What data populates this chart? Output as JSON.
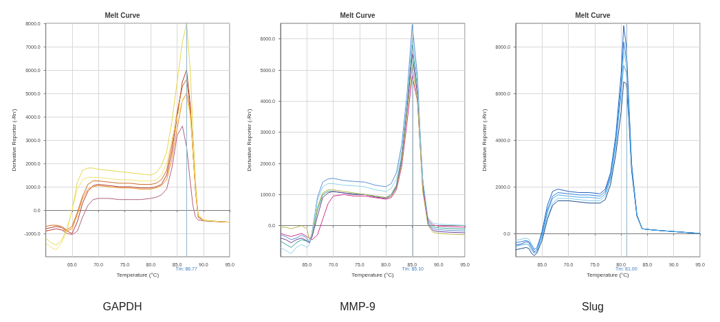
{
  "chart_data": [
    {
      "type": "line",
      "title": "Melt Curve",
      "xlabel": "Temperature (°C)",
      "ylabel": "Derivative Reporter (-Rn')",
      "annotations": [
        "GAPDH"
      ],
      "grid": true,
      "line_style": "solid",
      "xlim": [
        60,
        95
      ],
      "xticks": [
        {
          "value": 65,
          "label": "65.0"
        },
        {
          "value": 70,
          "label": "70.0"
        },
        {
          "value": 75,
          "label": "75.0"
        },
        {
          "value": 80,
          "label": "80.0"
        },
        {
          "value": 85,
          "label": "85.0"
        },
        {
          "value": 90,
          "label": "90.0"
        },
        {
          "value": 95,
          "label": "95.0"
        }
      ],
      "ylim": [
        -2000,
        8000
      ],
      "yticks": [
        {
          "value": -1000,
          "label": "-1000.0"
        },
        {
          "value": 0,
          "label": "0.0"
        },
        {
          "value": 1000,
          "label": "1000.0"
        },
        {
          "value": 2000,
          "label": "2000.0"
        },
        {
          "value": 3000,
          "label": "3000.0"
        },
        {
          "value": 4000,
          "label": "4000.0"
        },
        {
          "value": 5000,
          "label": "5000.0"
        },
        {
          "value": 6000,
          "label": "6000.0"
        },
        {
          "value": 7000,
          "label": "7000.0"
        },
        {
          "value": 8000,
          "label": "8000.0"
        }
      ],
      "ref_lines": [
        {
          "axis": "x",
          "value": 86.77,
          "label": "Tm: 86.77",
          "color": "#8fb3c8"
        }
      ],
      "x": [
        60,
        61,
        62,
        63,
        64,
        65,
        66,
        67,
        68,
        69,
        70,
        72,
        74,
        76,
        78,
        80,
        81,
        82,
        83,
        84,
        85,
        86,
        86.8,
        87.5,
        88,
        88.5,
        89,
        90,
        92,
        95
      ],
      "series": [
        {
          "color": "#b03a2e",
          "values": [
            -800,
            -750,
            -700,
            -750,
            -900,
            -1000,
            -500,
            300,
            800,
            1050,
            1100,
            1050,
            1000,
            1000,
            950,
            950,
            1000,
            1100,
            1500,
            2500,
            4000,
            5500,
            6000,
            4500,
            2500,
            800,
            -300,
            -450,
            -480,
            -520
          ]
        },
        {
          "color": "#e3d84a",
          "values": [
            -1200,
            -1400,
            -1500,
            -1300,
            -800,
            0,
            1200,
            1700,
            1800,
            1800,
            1750,
            1700,
            1650,
            1600,
            1550,
            1500,
            1600,
            1900,
            2500,
            3800,
            5500,
            7200,
            8000,
            6000,
            3500,
            1200,
            -200,
            -420,
            -470,
            -520
          ]
        },
        {
          "color": "#f08a1c",
          "values": [
            -900,
            -850,
            -800,
            -850,
            -900,
            -800,
            -200,
            500,
            900,
            1000,
            1050,
            1000,
            950,
            950,
            900,
            900,
            950,
            1050,
            1300,
            2200,
            3500,
            4700,
            5000,
            4200,
            2600,
            900,
            -250,
            -450,
            -480,
            -520
          ]
        },
        {
          "color": "#b0607a",
          "values": [
            -900,
            -850,
            -800,
            -850,
            -1000,
            -1050,
            -900,
            -300,
            200,
            450,
            500,
            500,
            450,
            450,
            450,
            500,
            550,
            650,
            900,
            1800,
            3200,
            3600,
            2700,
            1200,
            200,
            -300,
            -420,
            -460,
            -490,
            -520
          ]
        },
        {
          "color": "#d2691e",
          "values": [
            -700,
            -650,
            -650,
            -700,
            -850,
            -700,
            -100,
            600,
            1100,
            1250,
            1250,
            1200,
            1150,
            1150,
            1100,
            1100,
            1150,
            1300,
            1700,
            2800,
            4200,
            5300,
            5600,
            4300,
            2600,
            900,
            -250,
            -440,
            -480,
            -520
          ]
        },
        {
          "color": "#f2e36b",
          "values": [
            -1400,
            -1600,
            -1700,
            -1400,
            -900,
            0,
            900,
            1300,
            1400,
            1400,
            1400,
            1350,
            1300,
            1300,
            1250,
            1250,
            1300,
            1500,
            2000,
            3000,
            4000,
            4700,
            4800,
            4000,
            2500,
            900,
            -250,
            -440,
            -480,
            -520
          ]
        }
      ]
    },
    {
      "type": "line",
      "title": "Melt Curve",
      "xlabel": "Temperature (°C)",
      "ylabel": "Derivative Reporter (-Rn')",
      "annotations": [
        "MMP-9"
      ],
      "grid": true,
      "line_style": "solid",
      "xlim": [
        60,
        95
      ],
      "xticks": [
        {
          "value": 65,
          "label": "65.0"
        },
        {
          "value": 70,
          "label": "70.0"
        },
        {
          "value": 75,
          "label": "75.0"
        },
        {
          "value": 80,
          "label": "80.0"
        },
        {
          "value": 85,
          "label": "85.0"
        },
        {
          "value": 90,
          "label": "90.0"
        },
        {
          "value": 95,
          "label": "95.0"
        }
      ],
      "ylim": [
        -1000,
        6500
      ],
      "yticks": [
        {
          "value": 0,
          "label": "0.0"
        },
        {
          "value": 1000,
          "label": "1000.0"
        },
        {
          "value": 2000,
          "label": "2000.0"
        },
        {
          "value": 3000,
          "label": "3000.0"
        },
        {
          "value": 4000,
          "label": "4000.0"
        },
        {
          "value": 5000,
          "label": "5000.0"
        },
        {
          "value": 6000,
          "label": "6000.0"
        }
      ],
      "ref_lines": [
        {
          "axis": "x",
          "value": 85.1,
          "label": "Tm: 85.10",
          "color": "#8fb3c8"
        }
      ],
      "x": [
        60,
        61,
        62,
        63,
        64,
        65,
        65.5,
        66,
        67,
        68,
        69,
        70,
        72,
        74,
        76,
        78,
        80,
        81,
        82,
        83,
        84,
        85,
        86,
        86.5,
        87,
        88,
        89,
        90,
        92,
        95
      ],
      "series": [
        {
          "color": "#5b8fd6",
          "values": [
            -300,
            -350,
            -450,
            -400,
            -300,
            -400,
            -550,
            -200,
            900,
            1400,
            1500,
            1520,
            1450,
            1420,
            1400,
            1300,
            1250,
            1350,
            1700,
            2600,
            4200,
            6450,
            4800,
            3000,
            1500,
            100,
            -100,
            -130,
            -150,
            -170
          ]
        },
        {
          "color": "#2fa58a",
          "values": [
            -500,
            -600,
            -700,
            -550,
            -450,
            -500,
            -550,
            -300,
            500,
            1000,
            1100,
            1100,
            1050,
            1020,
            1000,
            950,
            900,
            1000,
            1300,
            2200,
            3800,
            5800,
            4400,
            2800,
            1400,
            150,
            -40,
            -70,
            -90,
            -110
          ]
        },
        {
          "color": "#6a3d9a",
          "values": [
            -400,
            -450,
            -550,
            -450,
            -400,
            -480,
            -550,
            -350,
            300,
            900,
            1050,
            1100,
            1050,
            1000,
            1000,
            920,
            880,
            950,
            1250,
            2100,
            3700,
            5500,
            4200,
            2700,
            1350,
            50,
            -160,
            -190,
            -210,
            -230
          ]
        },
        {
          "color": "#d0308f",
          "values": [
            -250,
            -300,
            -350,
            -300,
            -250,
            -350,
            -400,
            -450,
            -300,
            200,
            700,
            950,
            1000,
            950,
            950,
            900,
            850,
            900,
            1150,
            1900,
            3300,
            4800,
            4000,
            2600,
            1200,
            200,
            20,
            -10,
            -30,
            -50
          ]
        },
        {
          "color": "#b5b54a",
          "values": [
            -50,
            -50,
            -100,
            -50,
            0,
            -100,
            -450,
            -250,
            600,
            1050,
            1150,
            1150,
            1100,
            1050,
            1000,
            950,
            900,
            950,
            1200,
            2000,
            3600,
            5100,
            4000,
            2600,
            1100,
            0,
            -220,
            -250,
            -270,
            -290
          ]
        },
        {
          "color": "#8fd3e8",
          "values": [
            -700,
            -800,
            -900,
            -700,
            -600,
            -700,
            -600,
            -200,
            800,
            1250,
            1350,
            1350,
            1300,
            1280,
            1250,
            1150,
            1100,
            1200,
            1500,
            2400,
            4000,
            6000,
            4600,
            2900,
            1450,
            250,
            80,
            50,
            30,
            10
          ]
        }
      ]
    },
    {
      "type": "line",
      "title": "Melt Curve",
      "xlabel": "Temperature (°C)",
      "ylabel": "Derivative Reporter (-Rn')",
      "annotations": [
        "Slug"
      ],
      "grid": true,
      "line_style": "solid",
      "xlim": [
        60,
        95
      ],
      "xticks": [
        {
          "value": 65,
          "label": "65.0"
        },
        {
          "value": 70,
          "label": "70.0"
        },
        {
          "value": 75,
          "label": "75.0"
        },
        {
          "value": 80,
          "label": "80.0"
        },
        {
          "value": 85,
          "label": "85.0"
        },
        {
          "value": 90,
          "label": "90.0"
        },
        {
          "value": 95,
          "label": "95.0"
        }
      ],
      "ylim": [
        -1000,
        9000
      ],
      "yticks": [
        {
          "value": 0,
          "label": "0.0"
        },
        {
          "value": 2000,
          "label": "2000.0"
        },
        {
          "value": 4000,
          "label": "4000.0"
        },
        {
          "value": 6000,
          "label": "6000.0"
        },
        {
          "value": 8000,
          "label": "8000.0"
        }
      ],
      "ref_lines": [
        {
          "axis": "x",
          "value": 81,
          "label": "Tm: 81.00",
          "color": "#8fb3c8"
        }
      ],
      "x": [
        60,
        61,
        62,
        62.5,
        63,
        63.5,
        64,
        65,
        66,
        67,
        68,
        70,
        72,
        74,
        76,
        77,
        78,
        79,
        80,
        80.5,
        81,
        81.5,
        82,
        83,
        84,
        86,
        90,
        95
      ],
      "series": [
        {
          "color": "#1f5fbf",
          "values": [
            -500,
            -450,
            -350,
            -400,
            -600,
            -800,
            -700,
            100,
            1200,
            1800,
            1900,
            1800,
            1750,
            1750,
            1700,
            1900,
            2600,
            4200,
            6800,
            8900,
            8000,
            5500,
            3000,
            800,
            200,
            150,
            80,
            0
          ]
        },
        {
          "color": "#2e7fd9",
          "values": [
            -400,
            -350,
            -300,
            -350,
            -500,
            -700,
            -600,
            0,
            1000,
            1600,
            1750,
            1700,
            1650,
            1650,
            1600,
            1800,
            2500,
            4000,
            6300,
            8200,
            7500,
            5200,
            2900,
            800,
            200,
            150,
            80,
            0
          ]
        },
        {
          "color": "#7ec8ee",
          "values": [
            -300,
            -250,
            -200,
            -250,
            -450,
            -650,
            -650,
            -200,
            700,
            1300,
            1500,
            1500,
            1450,
            1400,
            1400,
            1600,
            2300,
            3700,
            6000,
            7800,
            7200,
            5000,
            2800,
            750,
            200,
            150,
            80,
            0
          ]
        },
        {
          "color": "#1a4a8a",
          "values": [
            -700,
            -650,
            -600,
            -650,
            -850,
            -950,
            -850,
            -300,
            600,
            1200,
            1400,
            1400,
            1350,
            1300,
            1300,
            1450,
            2100,
            3400,
            5200,
            6500,
            6400,
            4800,
            2700,
            750,
            200,
            150,
            80,
            0
          ]
        },
        {
          "color": "#4aa8e8",
          "values": [
            -550,
            -500,
            -450,
            -500,
            -700,
            -850,
            -800,
            -100,
            900,
            1500,
            1650,
            1600,
            1550,
            1550,
            1500,
            1700,
            2400,
            3900,
            6000,
            7200,
            6900,
            5000,
            2850,
            780,
            200,
            150,
            80,
            0
          ]
        }
      ]
    }
  ]
}
